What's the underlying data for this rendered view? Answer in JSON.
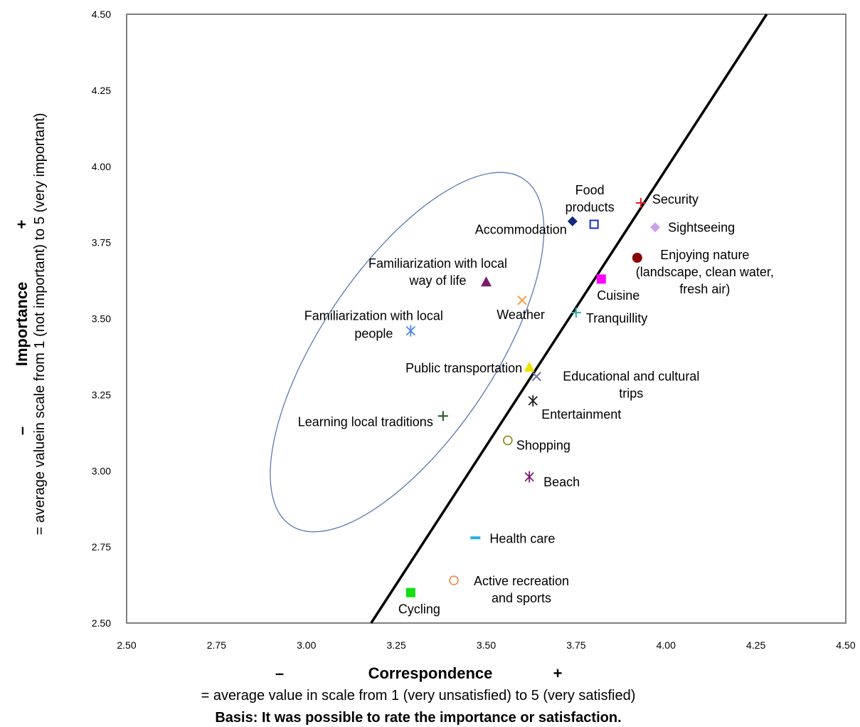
{
  "chart_data": {
    "type": "scatter",
    "xlim": [
      2.5,
      4.5
    ],
    "ylim": [
      2.5,
      4.5
    ],
    "x_ticks": [
      "2.50",
      "2.75",
      "3.00",
      "3.25",
      "3.50",
      "3.75",
      "4.00",
      "4.25",
      "4.50"
    ],
    "y_ticks": [
      "2.50",
      "2.75",
      "3.00",
      "3.25",
      "3.50",
      "3.75",
      "4.00",
      "4.25",
      "4.50"
    ],
    "grid": false,
    "xlabel": {
      "minus": "–",
      "main": "Correspondence",
      "plus": "+",
      "sub": "=  average value in scale from 1 (very unsatisfied) to 5 (very satisfied)"
    },
    "ylabel": {
      "minus": "–",
      "main": "Importance",
      "plus": "+",
      "sub": "= average valuein scale from 1 (not important) to 5 (very important)"
    },
    "footnote": "Basis: It was possible to rate the importance or satisfaction.",
    "reference_line": {
      "from": [
        3.18,
        2.5
      ],
      "to": [
        4.28,
        4.5
      ],
      "color": "#000000"
    },
    "ellipse": {
      "cx": 3.28,
      "cy": 3.39,
      "rx": 0.58,
      "ry": 0.24,
      "angle_deg": -56,
      "color": "#4f6fa8"
    },
    "points": [
      {
        "name": "Security",
        "label": [
          "Security"
        ],
        "x": 3.93,
        "y": 3.88,
        "marker": "plus",
        "color": "#e02020"
      },
      {
        "name": "Food products",
        "label": [
          "Food",
          "products"
        ],
        "x": 3.8,
        "y": 3.81,
        "marker": "square-open",
        "color": "#1030d0"
      },
      {
        "name": "Accommodation",
        "label": [
          "Accommodation"
        ],
        "x": 3.74,
        "y": 3.82,
        "marker": "diamond",
        "color": "#102a80"
      },
      {
        "name": "Sightseeing",
        "label": [
          "Sightseeing"
        ],
        "x": 3.97,
        "y": 3.8,
        "marker": "diamond",
        "color": "#c8a2e8"
      },
      {
        "name": "Enjoying nature",
        "label": [
          "Enjoying nature",
          "(landscape, clean water,",
          "fresh air)"
        ],
        "x": 3.92,
        "y": 3.7,
        "marker": "circle",
        "color": "#8b0000"
      },
      {
        "name": "Familiarization with local way of life",
        "label": [
          "Familiarization with local",
          "way of life"
        ],
        "x": 3.5,
        "y": 3.62,
        "marker": "triangle",
        "color": "#7a1a6e"
      },
      {
        "name": "Cuisine",
        "label": [
          "Cuisine"
        ],
        "x": 3.82,
        "y": 3.63,
        "marker": "square",
        "color": "#ff00ff"
      },
      {
        "name": "Weather",
        "label": [
          "Weather"
        ],
        "x": 3.6,
        "y": 3.56,
        "marker": "x",
        "color": "#f0a040"
      },
      {
        "name": "Tranquillity",
        "label": [
          "Tranquillity"
        ],
        "x": 3.75,
        "y": 3.52,
        "marker": "plus",
        "color": "#30b0b0"
      },
      {
        "name": "Familiarization with local people",
        "label": [
          "Familiarization with local",
          "people"
        ],
        "x": 3.29,
        "y": 3.46,
        "marker": "star",
        "color": "#4a86e8"
      },
      {
        "name": "Public transportation",
        "label": [
          "Public transportation"
        ],
        "x": 3.62,
        "y": 3.34,
        "marker": "triangle",
        "color": "#f0e000"
      },
      {
        "name": "Educational and cultural trips",
        "label": [
          "Educational and cultural",
          "trips"
        ],
        "x": 3.64,
        "y": 3.31,
        "marker": "x",
        "color": "#7070a0"
      },
      {
        "name": "Entertainment",
        "label": [
          "Entertainment"
        ],
        "x": 3.63,
        "y": 3.23,
        "marker": "star",
        "color": "#202020"
      },
      {
        "name": "Learning local traditions",
        "label": [
          "Learning local traditions"
        ],
        "x": 3.38,
        "y": 3.18,
        "marker": "plus",
        "color": "#1a5a1a"
      },
      {
        "name": "Shopping",
        "label": [
          "Shopping"
        ],
        "x": 3.56,
        "y": 3.1,
        "marker": "circle-open",
        "color": "#808000"
      },
      {
        "name": "Beach",
        "label": [
          "Beach"
        ],
        "x": 3.62,
        "y": 2.98,
        "marker": "star",
        "color": "#7a1a6e"
      },
      {
        "name": "Health care",
        "label": [
          "Health care"
        ],
        "x": 3.47,
        "y": 2.78,
        "marker": "dash",
        "color": "#20b0e0"
      },
      {
        "name": "Active recreation and sports",
        "label": [
          "Active recreation",
          "and sports"
        ],
        "x": 3.41,
        "y": 2.64,
        "marker": "circle-open",
        "color": "#f08040"
      },
      {
        "name": "Cycling",
        "label": [
          "Cycling"
        ],
        "x": 3.29,
        "y": 2.6,
        "marker": "square",
        "color": "#10e010"
      }
    ]
  }
}
